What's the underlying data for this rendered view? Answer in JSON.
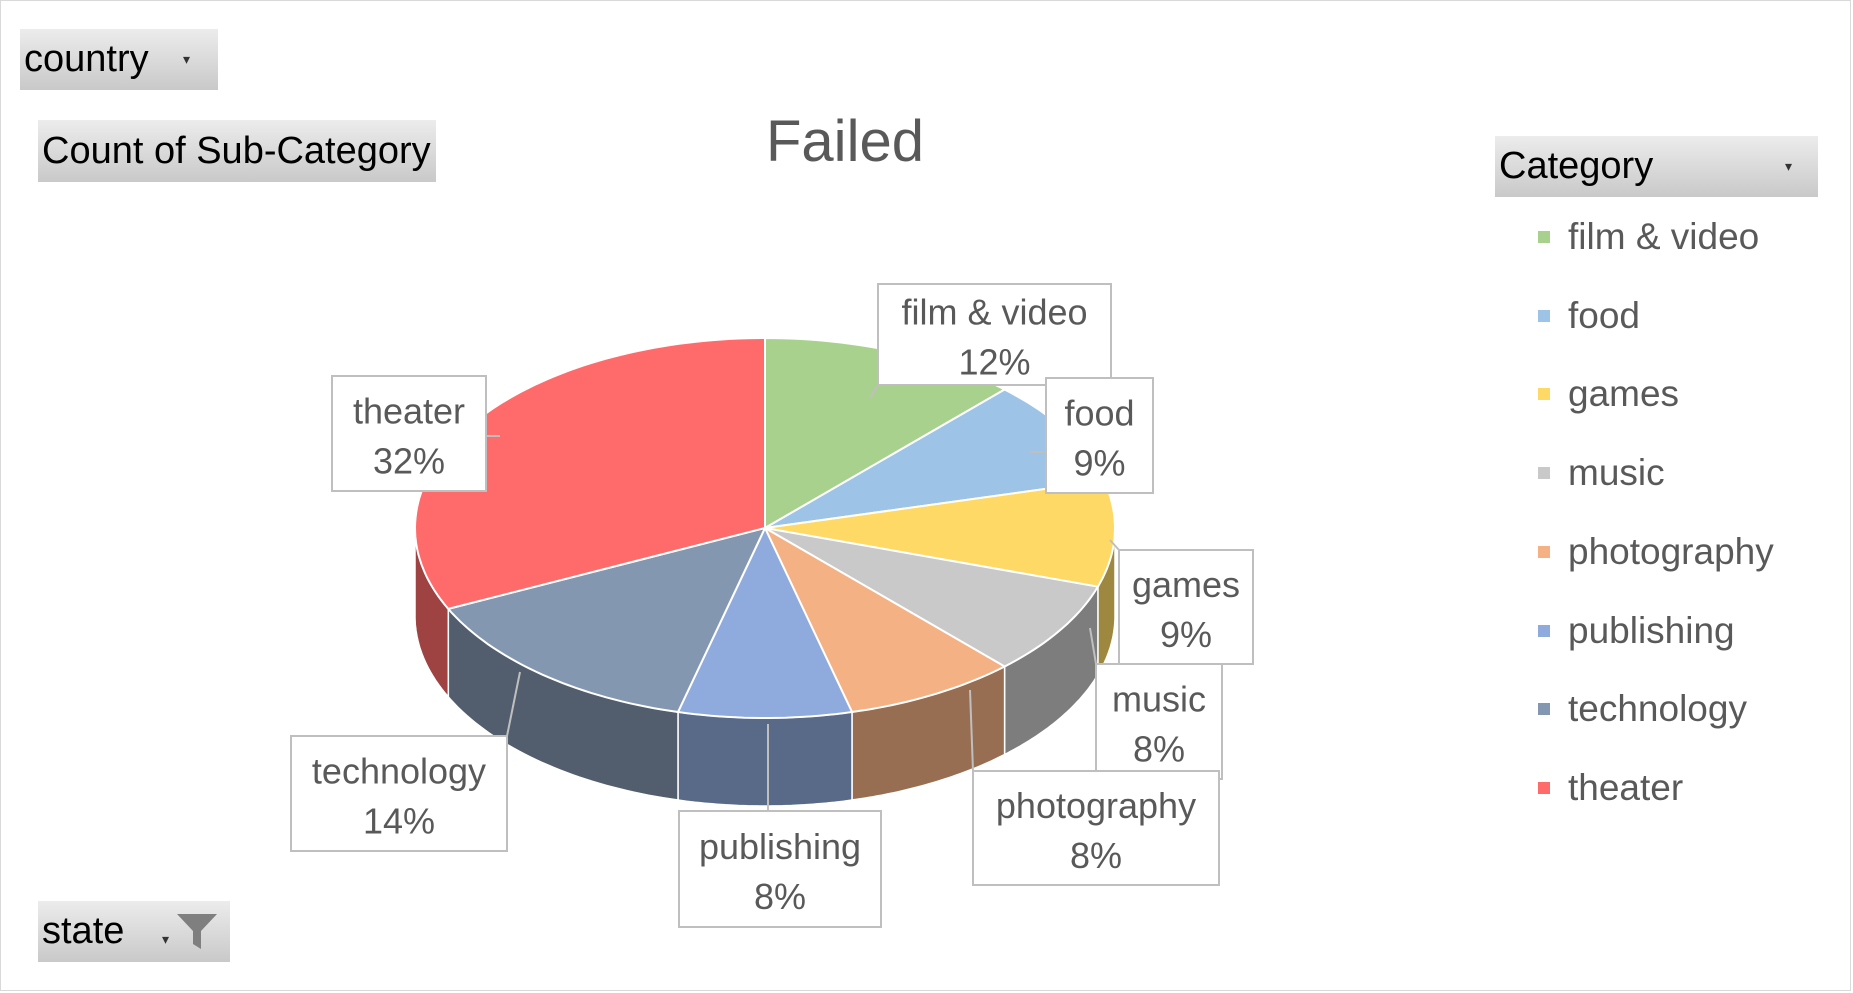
{
  "filters": {
    "country": {
      "label": "country"
    },
    "value_field": {
      "label": "Count of Sub-Category"
    },
    "category_field": {
      "label": "Category"
    },
    "state": {
      "label": "state"
    }
  },
  "icons": {
    "dropdown": "chevron-down-icon",
    "filter": "filter-funnel-icon"
  },
  "chart_data": {
    "type": "pie",
    "title": "Failed",
    "legend_position": "right",
    "legend_title": "Category",
    "categories": [
      "film & video",
      "food",
      "games",
      "music",
      "photography",
      "publishing",
      "technology",
      "theater"
    ],
    "values": [
      12,
      9,
      9,
      8,
      8,
      8,
      14,
      32
    ],
    "value_labels": [
      "12%",
      "9%",
      "9%",
      "8%",
      "8%",
      "8%",
      "14%",
      "32%"
    ],
    "colors": [
      "#a9d18e",
      "#9dc3e6",
      "#ffd966",
      "#c9c9c9",
      "#f4b183",
      "#8faadc",
      "#8497b0",
      "#ff6b6b"
    ]
  }
}
